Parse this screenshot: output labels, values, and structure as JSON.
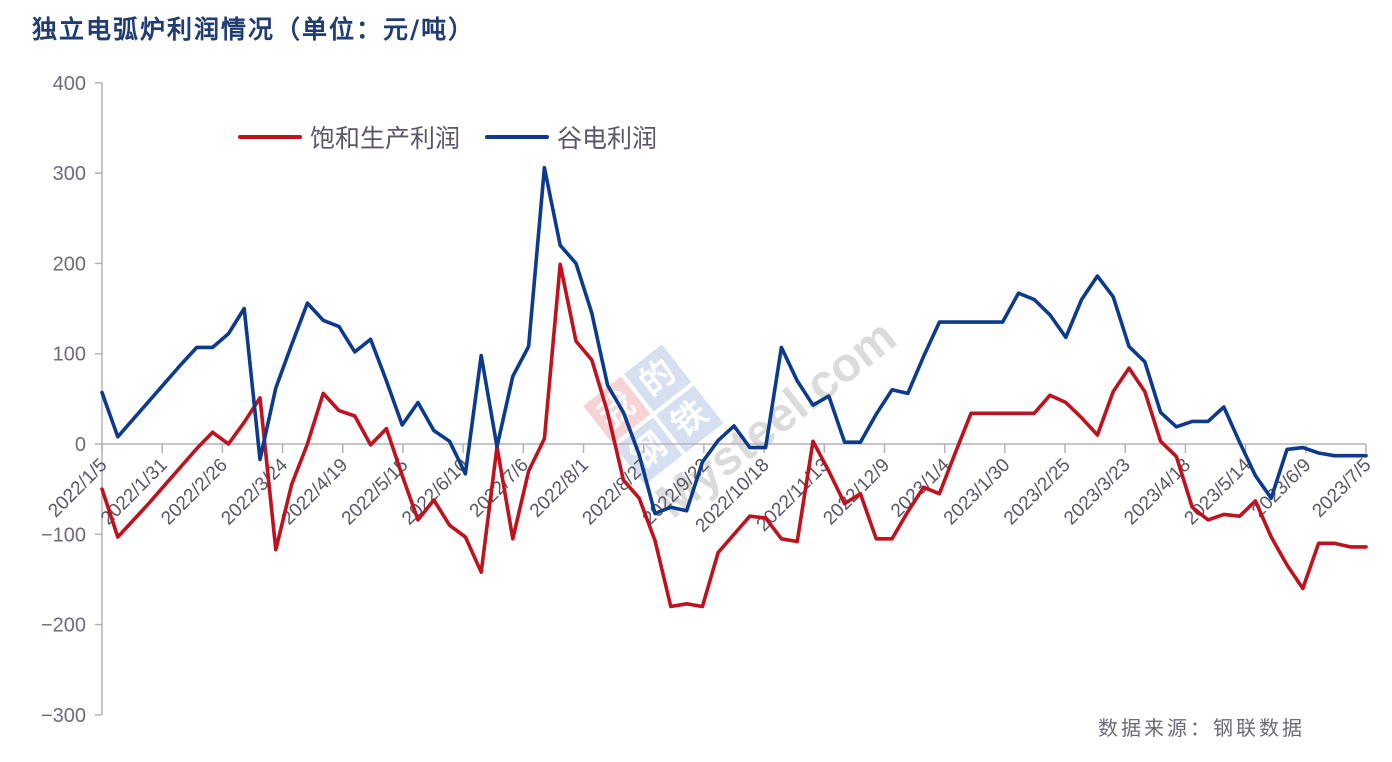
{
  "title": "独立电弧炉利润情况（单位：元/吨）",
  "source": "数据来源：钢联数据",
  "watermark": {
    "cn": "我的钢铁",
    "en": "Mysteel.com"
  },
  "colors": {
    "series_red": "#c0111f",
    "series_blue": "#0c3a8c",
    "axis": "#b5b1bd",
    "title": "#1f3c73"
  },
  "chart_data": {
    "type": "line",
    "title": "独立电弧炉利润情况（单位：元/吨）",
    "xlabel": "",
    "ylabel": "元/吨",
    "ylim": [
      -300,
      400
    ],
    "yticks": [
      400,
      300,
      200,
      100,
      0,
      -100,
      -200,
      -300
    ],
    "grid": false,
    "legend_position": "top-left-inside",
    "x_tick_labels": [
      "2022/1/5",
      "2022/1/31",
      "2022/2/26",
      "2022/3/24",
      "2022/4/19",
      "2022/5/15",
      "2022/6/10",
      "2022/7/6",
      "2022/8/1",
      "2022/8/27",
      "2022/9/22",
      "2022/10/18",
      "2022/11/13",
      "2022/12/9",
      "2023/1/4",
      "2023/1/30",
      "2023/2/25",
      "2023/3/23",
      "2023/4/18",
      "2023/5/14",
      "2023/6/9",
      "2023/7/5"
    ],
    "series": [
      {
        "name": "饱和生产利润",
        "color": "#c0111f",
        "values": [
          -50,
          -103,
          -84,
          -65,
          -45,
          -25,
          -5,
          13,
          0,
          24,
          51,
          -117,
          -45,
          0,
          56,
          37,
          31,
          -1,
          17,
          -35,
          -84,
          -62,
          -90,
          -103,
          -142,
          -3,
          -105,
          -30,
          6,
          199,
          114,
          93,
          35,
          -40,
          -60,
          -107,
          -180,
          -177,
          -180,
          -120,
          -100,
          -80,
          -82,
          -105,
          -108,
          3,
          -30,
          -66,
          -55,
          -105,
          -105,
          -75,
          -48,
          -55,
          -10,
          34,
          34,
          34,
          34,
          34,
          54,
          46,
          29,
          10,
          58,
          84,
          58,
          3,
          -14,
          -70,
          -84,
          -78,
          -80,
          -63,
          -103,
          -134,
          -160,
          -110,
          -110,
          -114,
          -114
        ],
        "values_note": "weekly points, estimated from pixel positions"
      },
      {
        "name": "谷电利润",
        "color": "#0c3a8c",
        "values": [
          57,
          8,
          28,
          48,
          68,
          88,
          107,
          107,
          122,
          150,
          -17,
          62,
          110,
          156,
          137,
          130,
          102,
          116,
          70,
          21,
          46,
          15,
          3,
          -33,
          98,
          -3,
          75,
          108,
          306,
          220,
          200,
          145,
          65,
          35,
          -12,
          -77,
          -70,
          -74,
          -20,
          4,
          20,
          -4,
          -4,
          107,
          70,
          43,
          53,
          2,
          2,
          33,
          60,
          56,
          97,
          135,
          135,
          135,
          135,
          135,
          167,
          160,
          143,
          118,
          160,
          186,
          163,
          108,
          91,
          35,
          19,
          25,
          25,
          41,
          2,
          -35,
          -60,
          -6,
          -4,
          -10,
          -13,
          -13,
          -13
        ]
      }
    ]
  },
  "legend": {
    "items": [
      {
        "label": "饱和生产利润",
        "color": "#c0111f"
      },
      {
        "label": "谷电利润",
        "color": "#0c3a8c"
      }
    ]
  }
}
